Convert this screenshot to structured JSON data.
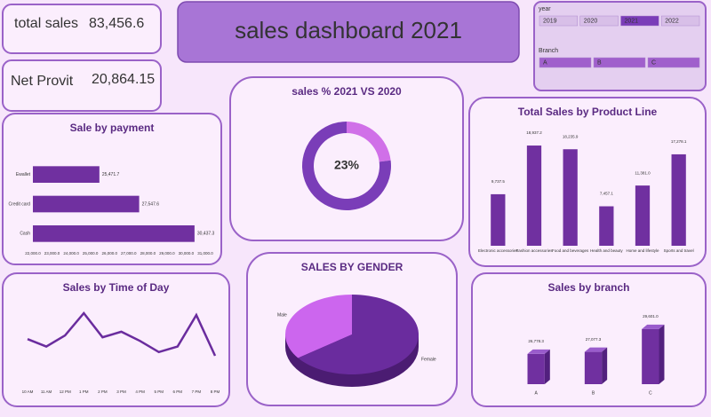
{
  "title": "sales dashboard 2021",
  "kpis": [
    {
      "label": "total sales",
      "value": "83,456.6"
    },
    {
      "label": "Net Provit",
      "value": "20,864.15"
    }
  ],
  "slicers": [
    {
      "title": "year",
      "items": [
        "2019",
        "2020",
        "2021",
        "2022"
      ],
      "selected": 2
    },
    {
      "title": "Branch",
      "items": [
        "A",
        "B",
        "C"
      ]
    }
  ],
  "chart_data": [
    {
      "type": "hbar",
      "title": "Sale by payment",
      "categories": [
        "Ewallet",
        "Credit card",
        "Cash"
      ],
      "values": [
        25471.7,
        27547.6,
        30437.3
      ],
      "value_labels": [
        "25,471.7",
        "27,547.6",
        "30,437.3"
      ],
      "color": "#7030a0",
      "xlim": [
        22000,
        31000
      ],
      "xticks": [
        {
          "value": 22000,
          "label": "22,000.0"
        },
        {
          "value": 23000,
          "label": "23,000.0"
        },
        {
          "value": 24000,
          "label": "24,000.0"
        },
        {
          "value": 25000,
          "label": "25,000.0"
        },
        {
          "value": 26000,
          "label": "26,000.0"
        },
        {
          "value": 27000,
          "label": "27,000.0"
        },
        {
          "value": 28000,
          "label": "28,000.0"
        },
        {
          "value": 29000,
          "label": "29,000.0"
        },
        {
          "value": 30000,
          "label": "30,000.0"
        },
        {
          "value": 31000,
          "label": "31,000.0"
        }
      ]
    },
    {
      "type": "donut",
      "title": "sales % 2021 VS 2020",
      "values": [
        23,
        77
      ],
      "value_labels": [
        "23%",
        null
      ],
      "colors": [
        "#d070e8",
        "#7a3db8"
      ]
    },
    {
      "type": "column",
      "title": "Total Sales by Product Line",
      "categories": [
        "Electronic accessories",
        "Fashion accessories",
        "Food and beverages",
        "Health and beauty",
        "Home and lifestyle",
        "Sports and travel"
      ],
      "values": [
        9737.5,
        18937.2,
        18235.9,
        7457.1,
        11381.0,
        17278.1
      ],
      "value_labels": [
        "9,737.5",
        "18,937.2",
        "18,235.9",
        "7,457.1",
        "11,381.0",
        "17,278.1"
      ],
      "color": "#7030a0"
    },
    {
      "type": "line",
      "title": "Sales by Time of Day",
      "categories": [
        "10 AM",
        "11 AM",
        "12 PM",
        "1 PM",
        "2 PM",
        "3 PM",
        "4 PM",
        "5 PM",
        "6 PM",
        "7 PM",
        "8 PM"
      ],
      "values": [
        7600,
        7200,
        7800,
        9000,
        7700,
        8000,
        7500,
        6900,
        7200,
        8900,
        6700
      ],
      "color": "#6a2c9e"
    },
    {
      "type": "pie3d",
      "title": "SALES BY GENDER",
      "categories": [
        "Male",
        "Female"
      ],
      "values": [
        35,
        65
      ],
      "colors": [
        "#cc66ee",
        "#6a2c9e"
      ]
    },
    {
      "type": "column3d",
      "title": "Sales by branch",
      "categories": [
        "A",
        "B",
        "C"
      ],
      "values": [
        26778.3,
        27077.3,
        29601.0
      ],
      "value_labels": [
        "26,778.3",
        "27,077.3",
        "29,601.0"
      ],
      "color": "#7030a0"
    }
  ]
}
